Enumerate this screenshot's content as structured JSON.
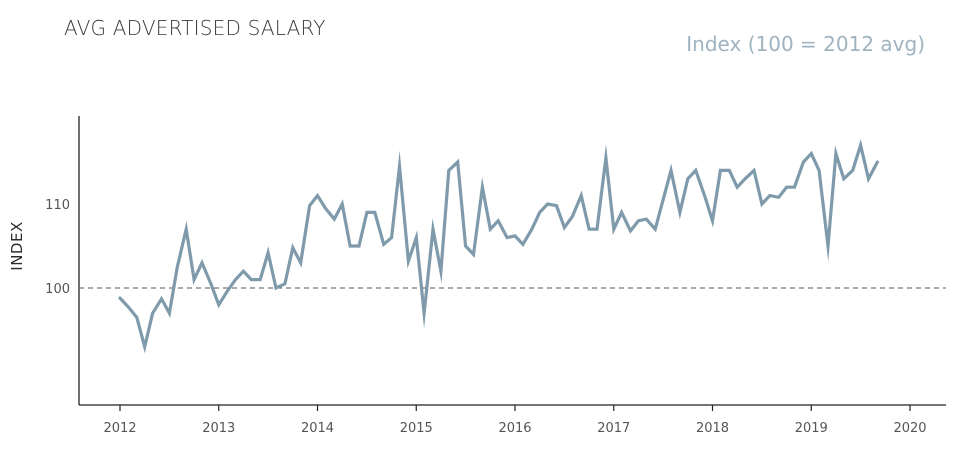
{
  "title": "AVG ADVERTISED SALARY",
  "subtitle": "Index (100 = 2012 avg)",
  "chart_data": {
    "type": "line",
    "title": "AVG ADVERTISED SALARY",
    "subtitle": "Index (100 = 2012 avg)",
    "xlabel": "",
    "ylabel": "INDEX",
    "xlim": [
      2011.8,
      2020.35
    ],
    "ylim": [
      86,
      120
    ],
    "x_ticks": [
      "2012",
      "2013",
      "2014",
      "2015",
      "2016",
      "2017",
      "2018",
      "2019",
      "2020"
    ],
    "y_ticks": [
      "100",
      "110"
    ],
    "reference_line": {
      "value": 100,
      "style": "dashed"
    },
    "line_color": "#7f9aab",
    "grid": false,
    "series": [
      {
        "name": "",
        "x": [
          2012.0,
          2012.08,
          2012.17,
          2012.25,
          2012.33,
          2012.42,
          2012.5,
          2012.58,
          2012.67,
          2012.75,
          2012.83,
          2012.92,
          2013.0,
          2013.08,
          2013.17,
          2013.25,
          2013.33,
          2013.42,
          2013.5,
          2013.58,
          2013.67,
          2013.75,
          2013.83,
          2013.92,
          2014.0,
          2014.08,
          2014.17,
          2014.25,
          2014.33,
          2014.42,
          2014.5,
          2014.58,
          2014.67,
          2014.75,
          2014.83,
          2014.92,
          2015.0,
          2015.08,
          2015.17,
          2015.25,
          2015.33,
          2015.42,
          2015.5,
          2015.58,
          2015.67,
          2015.75,
          2015.83,
          2015.92,
          2016.0,
          2016.08,
          2016.17,
          2016.25,
          2016.33,
          2016.42,
          2016.5,
          2016.58,
          2016.67,
          2016.75,
          2016.83,
          2016.92,
          2017.0,
          2017.08,
          2017.17,
          2017.25,
          2017.33,
          2017.42,
          2017.5,
          2017.58,
          2017.67,
          2017.75,
          2017.83,
          2017.92,
          2018.0,
          2018.08,
          2018.17,
          2018.25,
          2018.33,
          2018.42,
          2018.5,
          2018.58,
          2018.67,
          2018.75,
          2018.83,
          2018.92,
          2019.0,
          2019.08,
          2019.17,
          2019.25,
          2019.33,
          2019.42,
          2019.5,
          2019.58,
          2019.67
        ],
        "y": [
          98.8,
          97.8,
          96.5,
          93.0,
          97.0,
          98.7,
          97.0,
          102.5,
          107.0,
          101.0,
          103.0,
          100.5,
          98.0,
          99.5,
          101.0,
          102.0,
          101.0,
          101.0,
          104.2,
          100.0,
          100.5,
          104.8,
          103.0,
          109.8,
          111.0,
          109.5,
          108.2,
          110.0,
          105.0,
          105.0,
          109.0,
          109.0,
          105.2,
          106.0,
          114.5,
          103.2,
          106.0,
          97.0,
          107.0,
          102.0,
          114.0,
          115.0,
          105.0,
          104.0,
          112.0,
          107.0,
          108.0,
          106.0,
          106.2,
          105.2,
          107.0,
          109.0,
          110.0,
          109.8,
          107.2,
          108.5,
          111.0,
          107.0,
          107.0,
          115.5,
          107.0,
          109.0,
          106.8,
          108.0,
          108.2,
          107.0,
          110.5,
          114.0,
          109.0,
          113.0,
          114.0,
          111.0,
          108.0,
          114.0,
          114.0,
          112.0,
          113.0,
          114.0,
          110.0,
          111.0,
          110.8,
          112.0,
          112.0,
          115.0,
          116.0,
          114.0,
          105.0,
          116.0,
          113.0,
          114.0,
          117.0,
          113.0,
          115.0
        ]
      }
    ]
  }
}
